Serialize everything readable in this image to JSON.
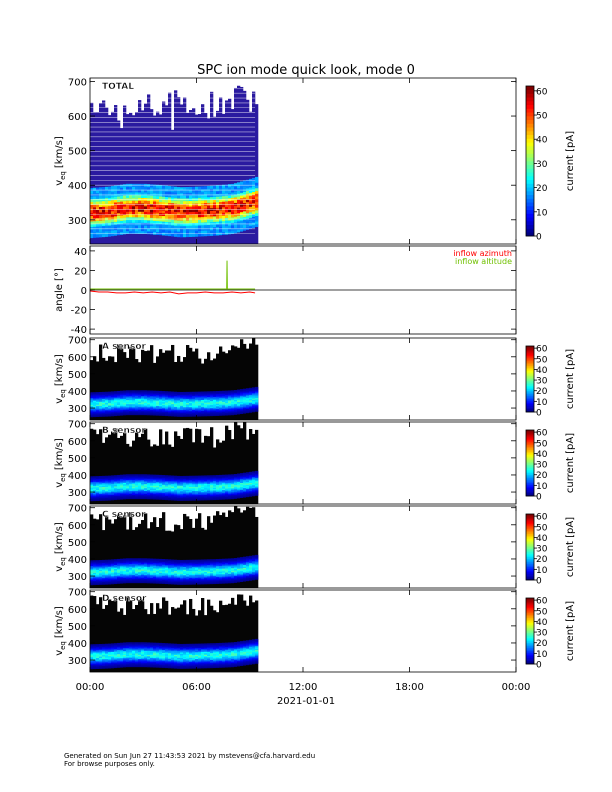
{
  "title": "SPC ion mode quick look, mode 0",
  "footer": {
    "line1": "Generated on Sun Jun 27 11:43:53 2021 by mstevens@cfa.harvard.edu",
    "line2": "For browse purposes only."
  },
  "chart_data": [
    {
      "id": "total",
      "type": "heatmap",
      "panel_label": "TOTAL",
      "ylabel": "v",
      "ylabel_sub": "eq",
      "ylabel_units": "[km/s]",
      "yticks": [
        300,
        400,
        500,
        600,
        700
      ],
      "ylim": [
        230,
        710
      ],
      "data_time_range_hours": [
        0,
        9.3
      ],
      "speed_profile": {
        "hours": [
          0,
          1,
          2,
          3,
          4,
          5,
          6,
          7,
          8,
          9,
          9.3
        ],
        "core_speed": [
          318,
          322,
          330,
          330,
          326,
          320,
          322,
          325,
          330,
          345,
          350
        ]
      },
      "colorbar": {
        "label": "current [pA]",
        "ticks": [
          0,
          10,
          20,
          30,
          40,
          50,
          60
        ],
        "range": [
          0,
          62
        ]
      }
    },
    {
      "id": "angle",
      "type": "line",
      "ylabel": "angle [°]",
      "yticks": [
        -40,
        -20,
        0,
        20,
        40
      ],
      "ylim": [
        -45,
        45
      ],
      "zero_line": true,
      "legend": [
        {
          "name": "inflow azimuth",
          "color": "#ff0000"
        },
        {
          "name": "inflow altitude",
          "color": "#70c000"
        }
      ],
      "series": [
        {
          "name": "inflow azimuth",
          "color": "#ff0000",
          "x": [
            0,
            0.5,
            1,
            1.5,
            2,
            2.5,
            3,
            3.5,
            4,
            4.5,
            5,
            5.5,
            6,
            6.5,
            7,
            7.5,
            8,
            8.5,
            9,
            9.3
          ],
          "y": [
            -1,
            -2,
            -2,
            -3,
            -3,
            -2,
            -3,
            -2,
            -3,
            -2,
            -4,
            -3,
            -3,
            -2,
            -3,
            -3,
            -2,
            -3,
            -2,
            -3
          ]
        },
        {
          "name": "inflow altitude",
          "color": "#70c000",
          "x": [
            0,
            0.5,
            1,
            1.5,
            2,
            2.5,
            3,
            3.5,
            4,
            4.5,
            5,
            5.5,
            6,
            6.5,
            7,
            7.5,
            7.7,
            7.72,
            7.74,
            8,
            8.5,
            9,
            9.3
          ],
          "y": [
            1,
            1,
            1,
            1,
            1,
            1,
            1,
            1,
            1,
            1,
            1,
            1,
            1,
            1,
            1,
            1,
            1,
            30,
            1,
            1,
            1,
            1,
            1
          ]
        }
      ]
    },
    {
      "id": "a",
      "type": "heatmap",
      "panel_label": "A sensor",
      "ylabel": "v",
      "ylabel_sub": "eq",
      "ylabel_units": "[km/s]",
      "yticks": [
        300,
        400,
        500,
        600,
        700
      ],
      "ylim": [
        230,
        710
      ],
      "data_time_range_hours": [
        0,
        9.3
      ],
      "speed_profile": {
        "hours": [
          0,
          1,
          2,
          3,
          4,
          5,
          6,
          7,
          8,
          9,
          9.3
        ],
        "core_speed": [
          318,
          322,
          330,
          330,
          326,
          320,
          322,
          325,
          330,
          345,
          350
        ]
      },
      "colorbar": {
        "label": "current [pA]",
        "ticks": [
          0,
          10,
          20,
          30,
          40,
          50,
          60
        ],
        "range": [
          0,
          62
        ]
      }
    },
    {
      "id": "b",
      "type": "heatmap",
      "panel_label": "B sensor",
      "ylabel": "v",
      "ylabel_sub": "eq",
      "ylabel_units": "[km/s]",
      "yticks": [
        300,
        400,
        500,
        600,
        700
      ],
      "ylim": [
        230,
        710
      ],
      "data_time_range_hours": [
        0,
        9.3
      ],
      "speed_profile": {
        "hours": [
          0,
          1,
          2,
          3,
          4,
          5,
          6,
          7,
          8,
          9,
          9.3
        ],
        "core_speed": [
          318,
          322,
          330,
          330,
          326,
          320,
          322,
          325,
          330,
          345,
          350
        ]
      },
      "colorbar": {
        "label": "current [pA]",
        "ticks": [
          0,
          10,
          20,
          30,
          40,
          50,
          60
        ],
        "range": [
          0,
          62
        ]
      }
    },
    {
      "id": "c",
      "type": "heatmap",
      "panel_label": "C sensor",
      "ylabel": "v",
      "ylabel_sub": "eq",
      "ylabel_units": "[km/s]",
      "yticks": [
        300,
        400,
        500,
        600,
        700
      ],
      "ylim": [
        230,
        710
      ],
      "data_time_range_hours": [
        0,
        9.3
      ],
      "speed_profile": {
        "hours": [
          0,
          1,
          2,
          3,
          4,
          5,
          6,
          7,
          8,
          9,
          9.3
        ],
        "core_speed": [
          318,
          322,
          330,
          330,
          326,
          320,
          322,
          325,
          330,
          345,
          350
        ]
      },
      "colorbar": {
        "label": "current [pA]",
        "ticks": [
          0,
          10,
          20,
          30,
          40,
          50,
          60
        ],
        "range": [
          0,
          62
        ]
      }
    },
    {
      "id": "d",
      "type": "heatmap",
      "panel_label": "D sensor",
      "ylabel": "v",
      "ylabel_sub": "eq",
      "ylabel_units": "[km/s]",
      "yticks": [
        300,
        400,
        500,
        600,
        700
      ],
      "ylim": [
        230,
        710
      ],
      "data_time_range_hours": [
        0,
        9.3
      ],
      "speed_profile": {
        "hours": [
          0,
          1,
          2,
          3,
          4,
          5,
          6,
          7,
          8,
          9,
          9.3
        ],
        "core_speed": [
          318,
          322,
          330,
          330,
          326,
          320,
          322,
          325,
          330,
          345,
          350
        ]
      },
      "colorbar": {
        "label": "current [pA]",
        "ticks": [
          0,
          10,
          20,
          30,
          40,
          50,
          60
        ],
        "range": [
          0,
          62
        ]
      }
    }
  ],
  "xaxis": {
    "ticks": [
      {
        "hours": 0,
        "label": "00:00"
      },
      {
        "hours": 6,
        "label": "06:00"
      },
      {
        "hours": 12,
        "label": "12:00"
      },
      {
        "hours": 18,
        "label": "18:00"
      },
      {
        "hours": 24,
        "label": "00:00"
      }
    ],
    "range_hours": [
      0,
      24
    ],
    "date_label": "2021-01-01"
  }
}
